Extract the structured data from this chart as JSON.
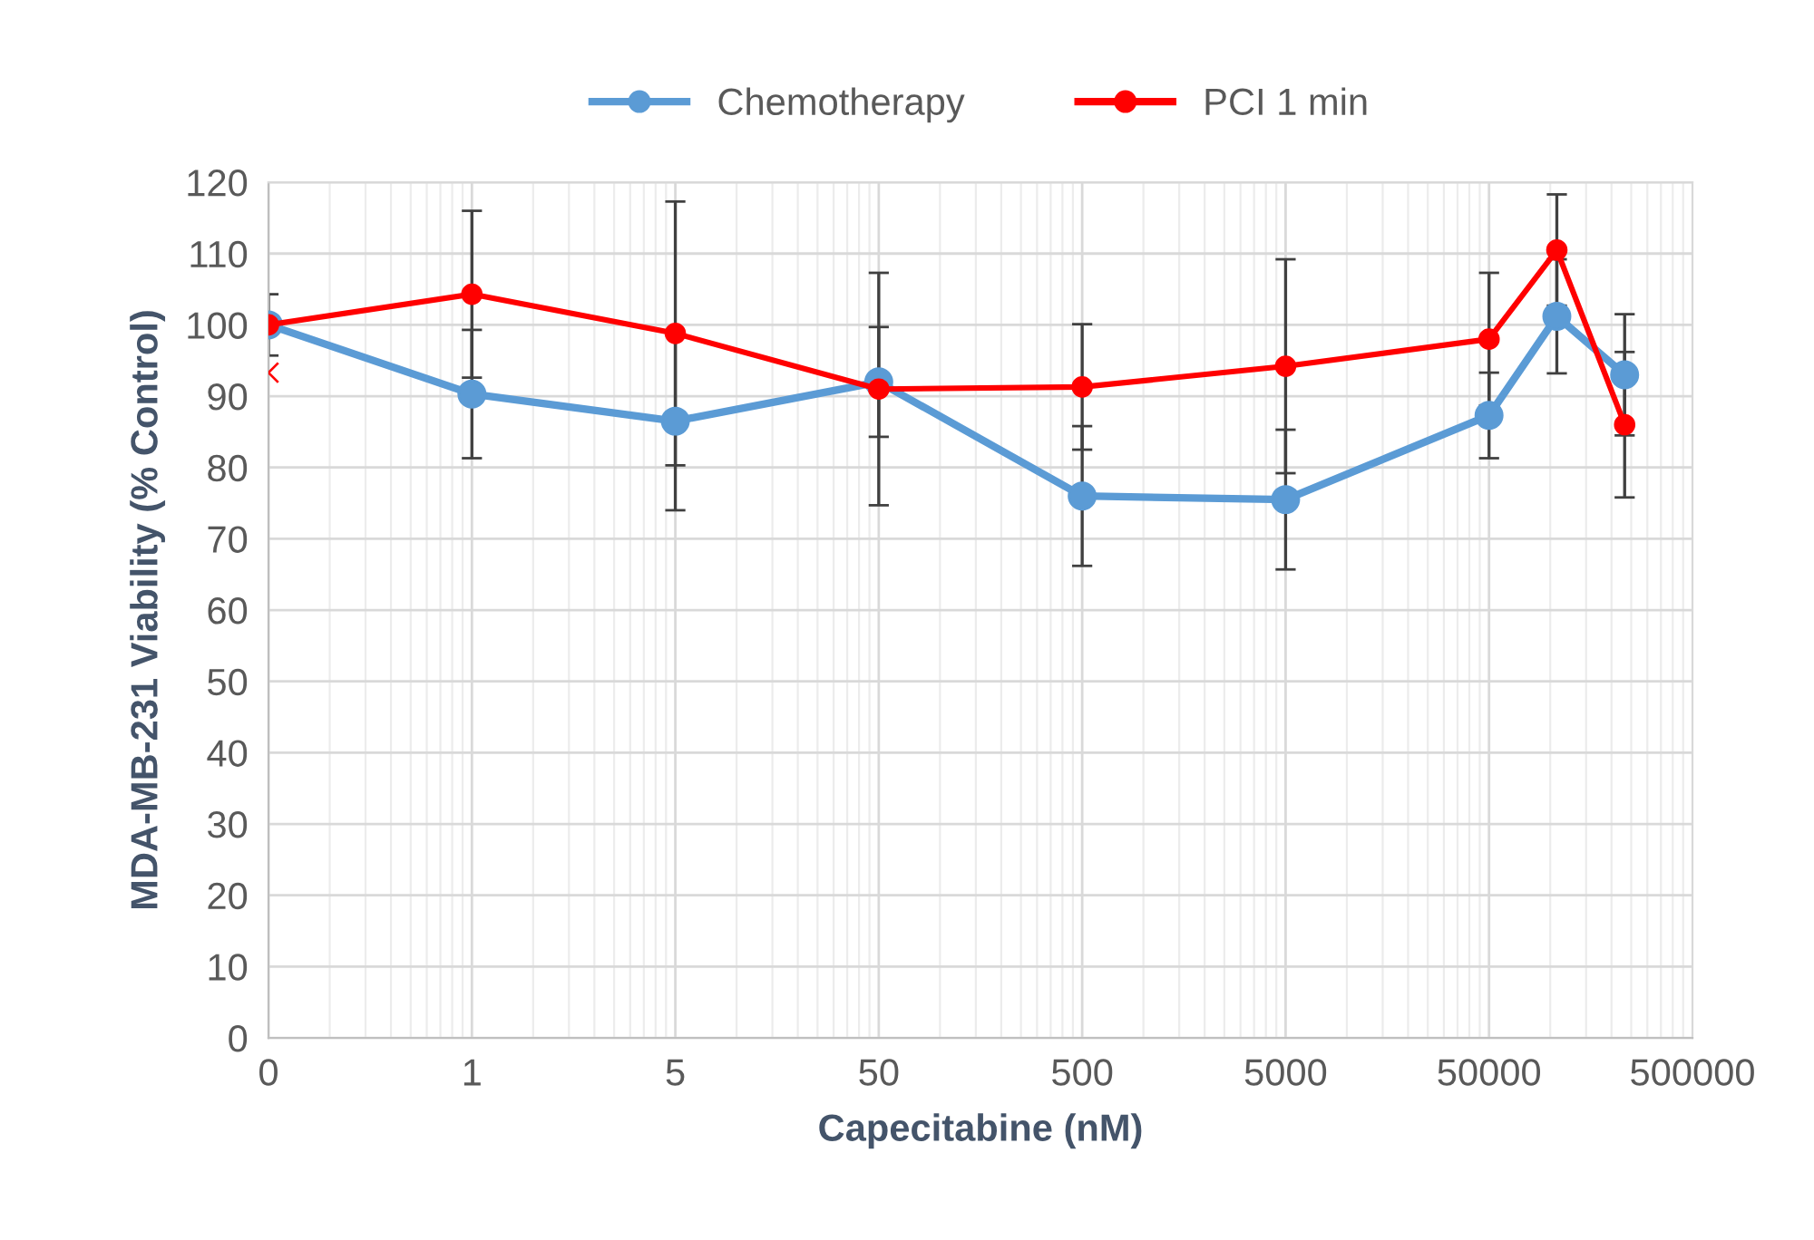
{
  "chart_data": {
    "type": "line",
    "xlabel": "Capecitabine (nM)",
    "ylabel": "MDA-MB-231 Viability (% Control)",
    "categories": [
      "0",
      null,
      null,
      "1",
      null,
      null,
      "5",
      null,
      null,
      "50",
      null,
      null,
      "500",
      null,
      null,
      "5000",
      null,
      null,
      "50000",
      null,
      null,
      "500000"
    ],
    "ylim": [
      0,
      120
    ],
    "yticks": [
      0,
      10,
      20,
      30,
      40,
      50,
      60,
      70,
      80,
      90,
      100,
      110,
      120
    ],
    "grid": true,
    "legend": "top",
    "marker": "circle",
    "line_style": "solid",
    "series": [
      {
        "name": "Chemotherapy",
        "color": "#5b9bd5",
        "values": [
          100,
          null,
          null,
          90.3,
          null,
          null,
          86.5,
          null,
          null,
          92,
          null,
          null,
          76,
          null,
          null,
          75.5,
          null,
          null,
          87.3,
          101.2,
          93,
          null
        ],
        "errors": [
          4.3,
          null,
          null,
          9,
          null,
          null,
          12.5,
          null,
          null,
          7.7,
          null,
          null,
          9.8,
          null,
          null,
          9.8,
          null,
          null,
          6,
          8,
          8.5,
          null
        ]
      },
      {
        "name": "PCI 1 min",
        "color": "#ff0000",
        "values": [
          100,
          null,
          null,
          104.3,
          null,
          null,
          98.8,
          null,
          null,
          91,
          null,
          null,
          91.3,
          null,
          null,
          94.2,
          null,
          null,
          98,
          110.5,
          86,
          null
        ],
        "errors": [
          null,
          null,
          null,
          11.7,
          null,
          null,
          18.5,
          null,
          null,
          16.3,
          null,
          null,
          8.8,
          null,
          null,
          15,
          null,
          null,
          9.3,
          7.8,
          10.2,
          null
        ]
      },
      {
        "type": "scatter",
        "marker": "cross",
        "color": "#ff0000",
        "x": [
          "0"
        ],
        "values": [
          93.3
        ]
      }
    ]
  }
}
